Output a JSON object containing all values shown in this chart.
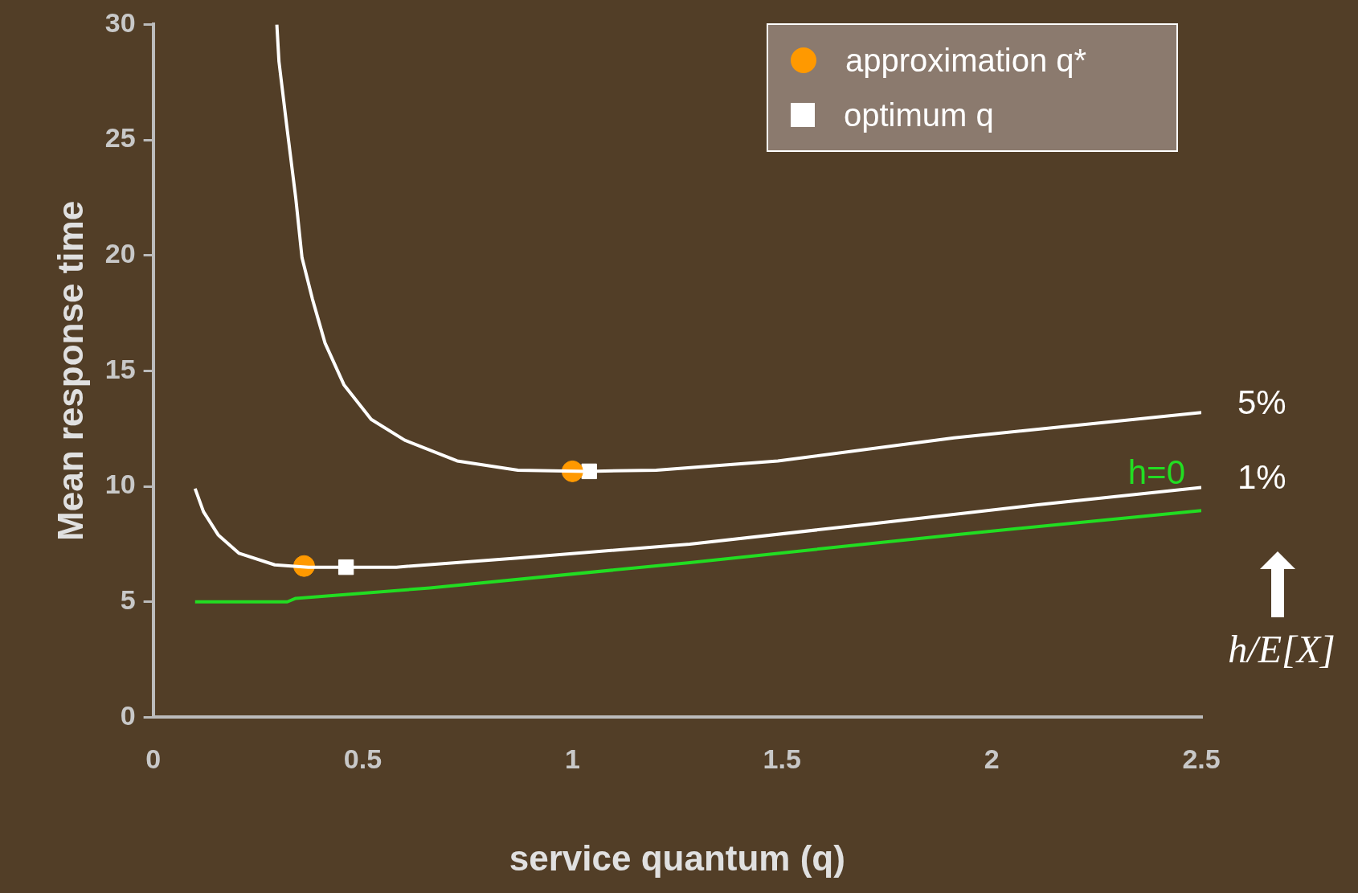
{
  "chart_data": {
    "type": "line",
    "xlabel": "service quantum (q)",
    "ylabel": "Mean response time",
    "xlim": [
      0,
      2.5
    ],
    "xticks": [
      0,
      0.5,
      1,
      1.5,
      2,
      2.5
    ],
    "ylim": [
      0,
      30
    ],
    "yticks": [
      0,
      5,
      10,
      15,
      20,
      25,
      30
    ],
    "grid": false,
    "legend": "top right",
    "line_style": "solid",
    "series": [
      {
        "name": "5%",
        "color": "#ffffff",
        "x": [
          0.295,
          0.3,
          0.32,
          0.34,
          0.355,
          0.38,
          0.41,
          0.455,
          0.52,
          0.6,
          0.725,
          0.87,
          1.035,
          1.2,
          1.49,
          1.91,
          2.5
        ],
        "values": [
          30,
          28.4,
          25.4,
          22.5,
          19.9,
          18.1,
          16.2,
          14.4,
          12.9,
          12,
          11.1,
          10.7,
          10.65,
          10.7,
          11.1,
          12.1,
          13.2
        ]
      },
      {
        "name": "1%",
        "color": "#ffffff",
        "x": [
          0.1,
          0.12,
          0.155,
          0.205,
          0.29,
          0.37,
          0.58,
          0.87,
          1.28,
          1.7,
          2.11,
          2.5
        ],
        "values": [
          9.9,
          8.9,
          7.9,
          7.1,
          6.6,
          6.5,
          6.5,
          6.9,
          7.5,
          8.35,
          9.2,
          9.95
        ]
      },
      {
        "name": "h=0",
        "color": "#22dd22",
        "x": [
          0.1,
          0.32,
          0.34,
          0.66,
          1.28,
          1.91,
          2.5
        ],
        "values": [
          5,
          5,
          5.15,
          5.6,
          6.7,
          7.9,
          8.95
        ]
      },
      {
        "name": "approximation q*",
        "type": "scatter",
        "marker": "circle",
        "color": "#ff9900",
        "x": [
          0.36,
          1
        ],
        "values": [
          6.55,
          10.65
        ]
      },
      {
        "name": "optimum q",
        "type": "scatter",
        "marker": "square",
        "color": "#ffffff",
        "x": [
          0.46,
          1.04
        ],
        "values": [
          6.5,
          10.65
        ]
      }
    ],
    "annotations": [
      "h/E[X]"
    ]
  }
}
